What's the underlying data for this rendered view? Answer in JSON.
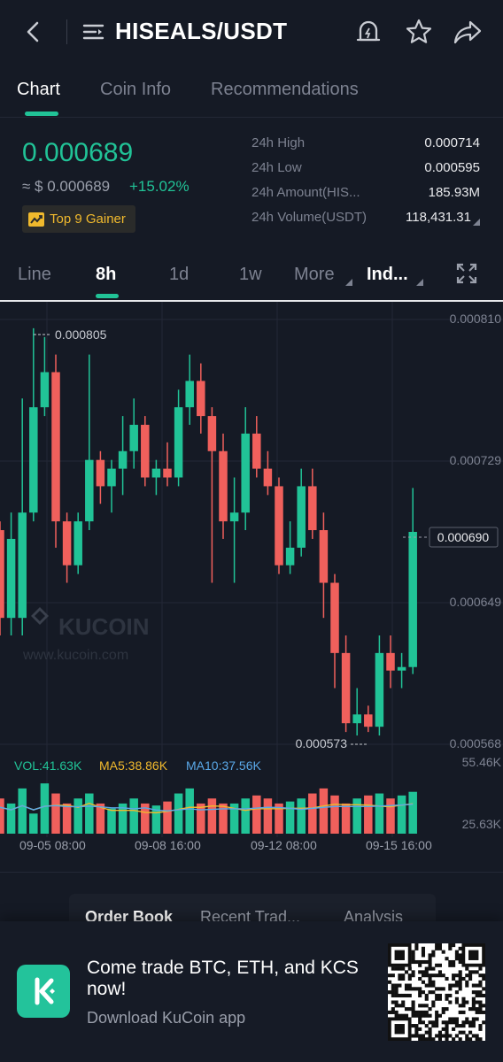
{
  "header": {
    "title": "HISEALS/USDT",
    "icons": [
      "back-arrow-icon",
      "menu-list-icon",
      "price-alert-icon",
      "star-icon",
      "share-icon"
    ]
  },
  "tabs": [
    {
      "label": "Chart",
      "active": true
    },
    {
      "label": "Coin Info",
      "active": false
    },
    {
      "label": "Recommendations",
      "active": false
    }
  ],
  "ticker": {
    "last_price": "0.000689",
    "fiat_price": "≈ $ 0.000689",
    "change": "+15.02%",
    "badge": "Top 9 Gainer",
    "stats": [
      {
        "label": "24h High",
        "value": "0.000714"
      },
      {
        "label": "24h Low",
        "value": "0.000595"
      },
      {
        "label": "24h Amount(HIS...",
        "value": "185.93M"
      },
      {
        "label": "24h Volume(USDT)",
        "value": "118,431.31"
      }
    ]
  },
  "intervals": {
    "items": [
      {
        "label": "Line",
        "active": false
      },
      {
        "label": "8h",
        "active": true
      },
      {
        "label": "1d",
        "active": false
      },
      {
        "label": "1w",
        "active": false
      },
      {
        "label": "More",
        "active": false
      },
      {
        "label": "Ind...",
        "active": false
      }
    ]
  },
  "chart": {
    "watermark_brand": "KUCOIN",
    "watermark_url": "www.kucoin.com",
    "y_axis_labels": [
      "0.000810",
      "0.000729",
      "0.000649",
      "0.000568"
    ],
    "current_price_label": "0.000690",
    "high_marker": "0.000805",
    "low_marker": "0.000573",
    "volume_legend": {
      "vol": "VOL:41.63K",
      "ma5": "MA5:38.86K",
      "ma10": "MA10:37.56K"
    },
    "volume_axis": [
      "55.46K",
      "25.63K"
    ],
    "x_axis_labels": [
      "09-05 08:00",
      "09-08 16:00",
      "09-12 08:00",
      "09-15 16:00"
    ],
    "colors": {
      "up": "#21c397",
      "down": "#f0605c",
      "ma5": "#f0b92d",
      "ma10": "#5aa8e8"
    }
  },
  "chart_data": {
    "type": "candlestick",
    "interval": "8h",
    "candles": [
      {
        "o": 0.00069,
        "h": 0.000695,
        "l": 0.00063,
        "c": 0.00064
      },
      {
        "o": 0.00064,
        "h": 0.0007,
        "l": 0.00063,
        "c": 0.000685
      },
      {
        "o": 0.00064,
        "h": 0.000765,
        "l": 0.00063,
        "c": 0.0007
      },
      {
        "o": 0.0007,
        "h": 0.000805,
        "l": 0.000695,
        "c": 0.00076
      },
      {
        "o": 0.00076,
        "h": 0.0008,
        "l": 0.000755,
        "c": 0.00078
      },
      {
        "o": 0.00078,
        "h": 0.00079,
        "l": 0.00068,
        "c": 0.000695
      },
      {
        "o": 0.000695,
        "h": 0.0007,
        "l": 0.00066,
        "c": 0.00067
      },
      {
        "o": 0.00067,
        "h": 0.0007,
        "l": 0.000665,
        "c": 0.000695
      },
      {
        "o": 0.000695,
        "h": 0.00079,
        "l": 0.00069,
        "c": 0.00073
      },
      {
        "o": 0.00073,
        "h": 0.000735,
        "l": 0.000705,
        "c": 0.000715
      },
      {
        "o": 0.000715,
        "h": 0.00073,
        "l": 0.0007,
        "c": 0.000725
      },
      {
        "o": 0.000725,
        "h": 0.000755,
        "l": 0.00071,
        "c": 0.000735
      },
      {
        "o": 0.000735,
        "h": 0.000765,
        "l": 0.000725,
        "c": 0.00075
      },
      {
        "o": 0.00075,
        "h": 0.000755,
        "l": 0.000715,
        "c": 0.00072
      },
      {
        "o": 0.00072,
        "h": 0.00073,
        "l": 0.00071,
        "c": 0.000725
      },
      {
        "o": 0.000725,
        "h": 0.00074,
        "l": 0.000715,
        "c": 0.00072
      },
      {
        "o": 0.00072,
        "h": 0.00077,
        "l": 0.000715,
        "c": 0.00076
      },
      {
        "o": 0.00076,
        "h": 0.00079,
        "l": 0.00075,
        "c": 0.000775
      },
      {
        "o": 0.000775,
        "h": 0.000785,
        "l": 0.000745,
        "c": 0.000755
      },
      {
        "o": 0.000755,
        "h": 0.00076,
        "l": 0.00066,
        "c": 0.000735
      },
      {
        "o": 0.000735,
        "h": 0.000745,
        "l": 0.000685,
        "c": 0.000695
      },
      {
        "o": 0.000695,
        "h": 0.00072,
        "l": 0.00066,
        "c": 0.0007
      },
      {
        "o": 0.0007,
        "h": 0.00076,
        "l": 0.00069,
        "c": 0.000745
      },
      {
        "o": 0.000745,
        "h": 0.000755,
        "l": 0.00072,
        "c": 0.000725
      },
      {
        "o": 0.000725,
        "h": 0.000735,
        "l": 0.00071,
        "c": 0.000715
      },
      {
        "o": 0.000715,
        "h": 0.00072,
        "l": 0.000665,
        "c": 0.00067
      },
      {
        "o": 0.00067,
        "h": 0.000695,
        "l": 0.000665,
        "c": 0.00068
      },
      {
        "o": 0.00068,
        "h": 0.000725,
        "l": 0.000675,
        "c": 0.000715
      },
      {
        "o": 0.000715,
        "h": 0.000725,
        "l": 0.000685,
        "c": 0.00069
      },
      {
        "o": 0.00069,
        "h": 0.0007,
        "l": 0.00064,
        "c": 0.00066
      },
      {
        "o": 0.00066,
        "h": 0.000665,
        "l": 0.0006,
        "c": 0.00062
      },
      {
        "o": 0.00062,
        "h": 0.00063,
        "l": 0.000575,
        "c": 0.00058
      },
      {
        "o": 0.00058,
        "h": 0.0006,
        "l": 0.000573,
        "c": 0.000585
      },
      {
        "o": 0.000585,
        "h": 0.00059,
        "l": 0.000575,
        "c": 0.000578
      },
      {
        "o": 0.000578,
        "h": 0.00063,
        "l": 0.000573,
        "c": 0.00062
      },
      {
        "o": 0.00062,
        "h": 0.00063,
        "l": 0.0006,
        "c": 0.00061
      },
      {
        "o": 0.00061,
        "h": 0.00062,
        "l": 0.0006,
        "c": 0.000612
      },
      {
        "o": 0.000612,
        "h": 0.000714,
        "l": 0.000608,
        "c": 0.000689
      }
    ],
    "volume": [
      35,
      30,
      45,
      20,
      50,
      40,
      30,
      35,
      40,
      30,
      25,
      30,
      35,
      30,
      28,
      32,
      40,
      45,
      30,
      35,
      30,
      30,
      35,
      38,
      35,
      30,
      32,
      35,
      40,
      45,
      38,
      30,
      35,
      38,
      40,
      35,
      38,
      41.63
    ],
    "y_axis": {
      "min": 0.000568,
      "max": 0.00081
    },
    "volume_axis": {
      "min": 25.63,
      "max": 55.46,
      "unit": "K"
    }
  },
  "order_panel": {
    "tabs": [
      {
        "label": "Order Book",
        "active": true
      },
      {
        "label": "Recent Trad...",
        "active": false
      },
      {
        "label": "Analysis",
        "active": false
      }
    ]
  },
  "banner": {
    "title": "Come trade BTC, ETH, and KCS now!",
    "subtitle": "Download KuCoin app"
  }
}
